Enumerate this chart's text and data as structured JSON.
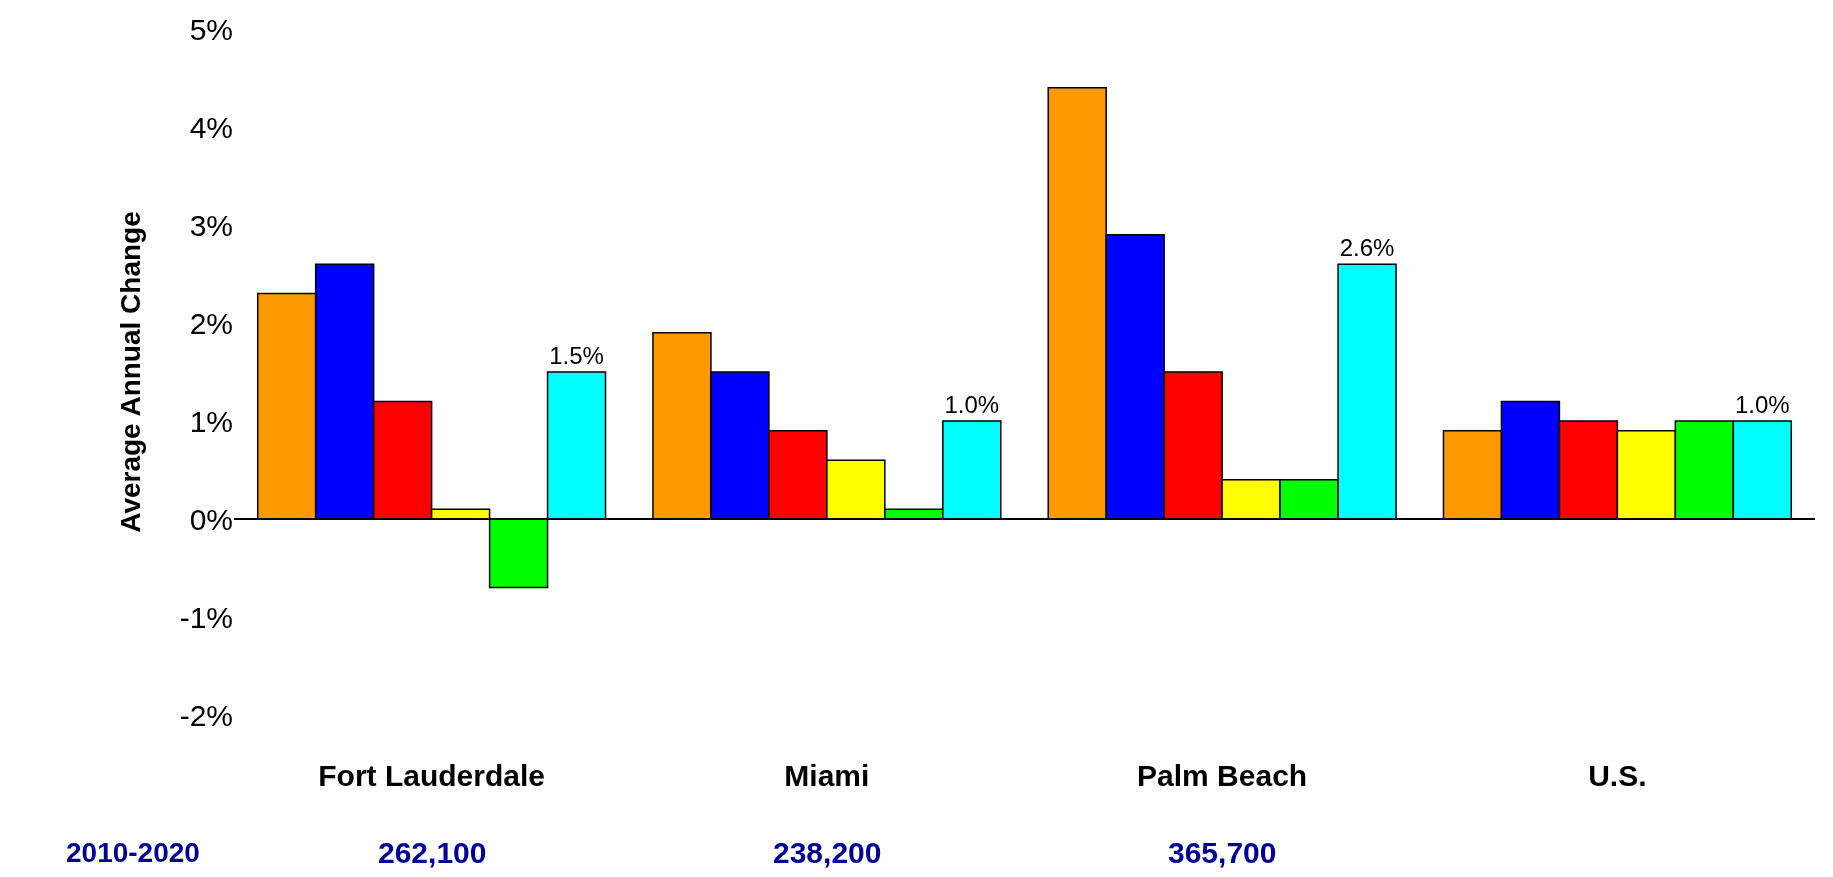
{
  "chart_data": {
    "type": "bar",
    "ylabel": "Average Annual Change",
    "categories": [
      "Fort Lauderdale",
      "Miami",
      "Palm Beach",
      "U.S."
    ],
    "series": [
      {
        "color": "#ff9900",
        "values": [
          2.3,
          1.9,
          4.4,
          0.9
        ]
      },
      {
        "color": "#0000ff",
        "values": [
          2.6,
          1.5,
          2.9,
          1.2
        ]
      },
      {
        "color": "#ff0000",
        "values": [
          1.2,
          0.9,
          1.5,
          1.0
        ]
      },
      {
        "color": "#ffff00",
        "values": [
          0.1,
          0.6,
          0.4,
          0.9
        ]
      },
      {
        "color": "#00ff00",
        "values": [
          -0.7,
          0.1,
          0.4,
          1.0
        ]
      },
      {
        "color": "#00ffff",
        "values": [
          1.5,
          1.0,
          2.6,
          1.0
        ],
        "value_labels": [
          "1.5%",
          "1.0%",
          "2.6%",
          "1.0%"
        ]
      }
    ],
    "ylim": [
      -2,
      5
    ],
    "yticks": [
      {
        "value": -2,
        "label": "-2%"
      },
      {
        "value": -1,
        "label": "-1%"
      },
      {
        "value": 0,
        "label": "0%"
      },
      {
        "value": 1,
        "label": "1%"
      },
      {
        "value": 2,
        "label": "2%"
      },
      {
        "value": 3,
        "label": "3%"
      },
      {
        "value": 4,
        "label": "4%"
      },
      {
        "value": 5,
        "label": "5%"
      }
    ],
    "annotations": [
      "2010-2020",
      "262,100",
      "238,200",
      "365,700"
    ]
  }
}
